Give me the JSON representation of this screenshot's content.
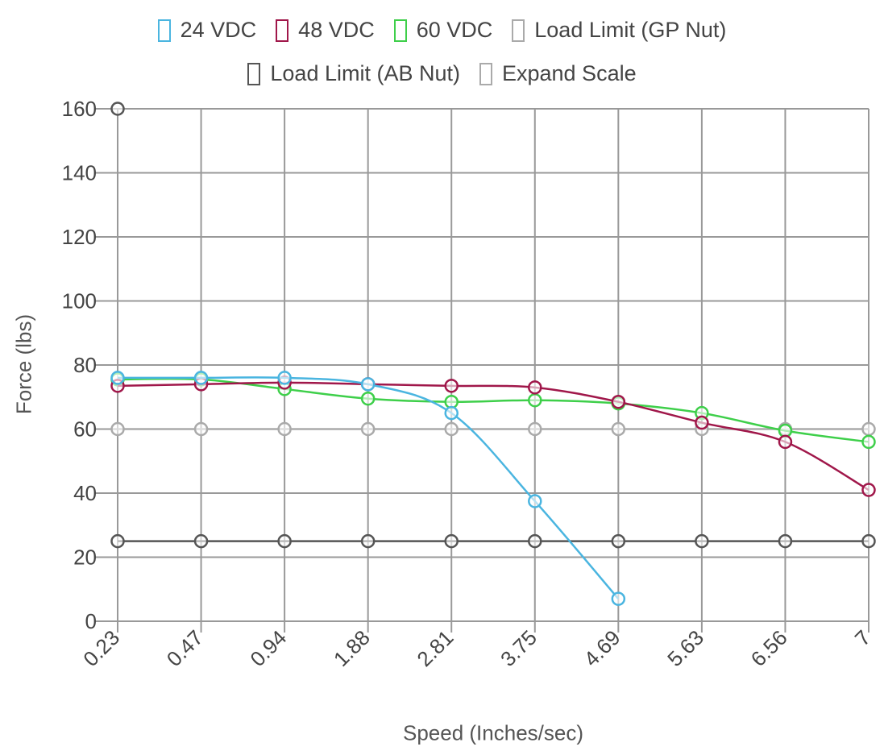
{
  "legend": {
    "items": [
      {
        "label": "24 VDC",
        "color": "#4ab5e0"
      },
      {
        "label": "48 VDC",
        "color": "#a0174a"
      },
      {
        "label": "60 VDC",
        "color": "#3ecf4a"
      },
      {
        "label": "Load Limit (GP Nut)",
        "color": "#aaaaaa"
      },
      {
        "label": "Load Limit (AB Nut)",
        "color": "#555555"
      },
      {
        "label": "Expand Scale",
        "color": "#aaaaaa"
      }
    ]
  },
  "chart_data": {
    "type": "line",
    "xlabel": "Speed (Inches/sec)",
    "ylabel": "Force (lbs)",
    "ylim": [
      0,
      160
    ],
    "yticks": [
      "0",
      "20",
      "40",
      "60",
      "80",
      "100",
      "120",
      "140",
      "160"
    ],
    "categories": [
      "0.23",
      "0.47",
      "0.94",
      "1.88",
      "2.81",
      "3.75",
      "4.69",
      "5.63",
      "6.56",
      "7"
    ],
    "grid": true,
    "legend_position": "top",
    "series": [
      {
        "name": "24 VDC",
        "color": "#4ab5e0",
        "values": [
          76,
          76,
          76,
          74,
          65,
          37.5,
          7,
          null,
          null,
          null
        ]
      },
      {
        "name": "48 VDC",
        "color": "#a0174a",
        "values": [
          73.5,
          74,
          74.5,
          74,
          73.5,
          73,
          68.5,
          62,
          56,
          41
        ]
      },
      {
        "name": "60 VDC",
        "color": "#3ecf4a",
        "values": [
          75.5,
          75.5,
          72.5,
          69.5,
          68.5,
          69,
          68,
          65,
          59.5,
          56
        ]
      },
      {
        "name": "Load Limit (GP Nut)",
        "color": "#aaaaaa",
        "values": [
          60,
          60,
          60,
          60,
          60,
          60,
          60,
          60,
          60,
          60
        ]
      },
      {
        "name": "Load Limit (AB Nut)",
        "color": "#555555",
        "values": [
          25,
          25,
          25,
          25,
          25,
          25,
          25,
          25,
          25,
          25
        ]
      },
      {
        "name": "Expand Scale",
        "color": "#555555",
        "values": [
          160,
          null,
          null,
          null,
          null,
          null,
          null,
          null,
          null,
          null
        ]
      }
    ]
  }
}
